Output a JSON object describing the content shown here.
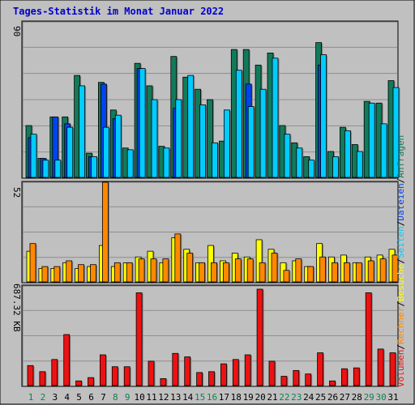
{
  "title": "Tages-Statistik im Monat Januar 2022",
  "chart_data": [
    {
      "type": "bar",
      "panel": "top",
      "ymax_label": "90",
      "ylim": [
        0,
        90
      ],
      "categories": [
        "1",
        "2",
        "3",
        "4",
        "5",
        "6",
        "7",
        "8",
        "9",
        "10",
        "11",
        "12",
        "13",
        "14",
        "15",
        "16",
        "17",
        "18",
        "19",
        "20",
        "21",
        "22",
        "23",
        "24",
        "25",
        "26",
        "27",
        "28",
        "29",
        "30",
        "31"
      ],
      "series": [
        {
          "name": "Anfragen",
          "color": "#127a5a",
          "values": [
            30,
            11,
            35,
            35,
            59,
            14,
            55,
            39,
            17,
            66,
            53,
            18,
            70,
            58,
            51,
            45,
            21,
            74,
            74,
            65,
            72,
            30,
            20,
            12,
            78,
            15,
            29,
            19,
            44,
            43,
            56
          ]
        },
        {
          "name": "Dateien",
          "color": "#0044ee",
          "values": [
            23,
            11,
            35,
            31,
            0,
            12,
            54,
            34,
            0,
            63,
            0,
            0,
            40,
            0,
            0,
            0,
            0,
            0,
            54,
            0,
            0,
            0,
            0,
            0,
            65,
            0,
            0,
            0,
            0,
            0,
            0
          ]
        },
        {
          "name": "Seiten",
          "color": "#00ccff",
          "values": [
            25,
            10,
            10,
            29,
            53,
            12,
            29,
            36,
            16,
            63,
            45,
            17,
            45,
            59,
            42,
            20,
            39,
            62,
            41,
            51,
            69,
            25,
            17,
            10,
            71,
            12,
            27,
            15,
            43,
            31,
            52
          ]
        }
      ]
    },
    {
      "type": "bar",
      "panel": "middle",
      "ymax_label": "52",
      "ylim": [
        0,
        52
      ],
      "categories": [
        "1",
        "2",
        "3",
        "4",
        "5",
        "6",
        "7",
        "8",
        "9",
        "10",
        "11",
        "12",
        "13",
        "14",
        "15",
        "16",
        "17",
        "18",
        "19",
        "20",
        "21",
        "22",
        "23",
        "24",
        "25",
        "26",
        "27",
        "28",
        "29",
        "30",
        "31"
      ],
      "series": [
        {
          "name": "Besuche",
          "color": "#ffff00",
          "values": [
            16,
            7,
            7,
            10,
            7,
            8,
            19,
            8,
            10,
            13,
            16,
            10,
            23,
            17,
            10,
            19,
            11,
            15,
            13,
            22,
            17,
            10,
            11,
            8,
            20,
            13,
            14,
            10,
            13,
            14,
            17
          ]
        },
        {
          "name": "Rechner",
          "color": "#ff8800",
          "values": [
            20,
            8,
            8,
            11,
            9,
            9,
            52,
            10,
            10,
            12,
            12,
            12,
            25,
            15,
            10,
            10,
            10,
            12,
            12,
            10,
            15,
            6,
            12,
            8,
            13,
            10,
            10,
            10,
            11,
            12,
            14
          ]
        }
      ]
    },
    {
      "type": "bar",
      "panel": "bottom",
      "ymax_label": "687.32 KB",
      "ylim": [
        0,
        687.32
      ],
      "categories": [
        "1",
        "2",
        "3",
        "4",
        "5",
        "6",
        "7",
        "8",
        "9",
        "10",
        "11",
        "12",
        "13",
        "14",
        "15",
        "16",
        "17",
        "18",
        "19",
        "20",
        "21",
        "22",
        "23",
        "24",
        "25",
        "26",
        "27",
        "28",
        "29",
        "30",
        "31"
      ],
      "series": [
        {
          "name": "Volumen",
          "color": "#ee1111",
          "values": [
            138,
            96,
            180,
            352,
            32,
            55,
            212,
            130,
            130,
            640,
            168,
            48,
            222,
            198,
            90,
            96,
            150,
            180,
            212,
            665,
            168,
            64,
            104,
            80,
            226,
            32,
            116,
            122,
            640,
            252,
            226
          ]
        }
      ]
    }
  ],
  "day_label_colors": {
    "weekday": "#000000",
    "weekend": "#108050"
  },
  "weekend_days": [
    1,
    2,
    8,
    9,
    15,
    16,
    22,
    23,
    29,
    30
  ],
  "legend_right": [
    {
      "text": "Anfragen",
      "color": "#127a5a"
    },
    {
      "text": "/",
      "color": "#000000"
    },
    {
      "text": "Dateien",
      "color": "#0044ee"
    },
    {
      "text": "/",
      "color": "#000000"
    },
    {
      "text": "Seiten",
      "color": "#00ccff"
    },
    {
      "text": "/",
      "color": "#000000"
    },
    {
      "text": "Besuche",
      "color": "#ffff00"
    },
    {
      "text": "/",
      "color": "#000000"
    },
    {
      "text": "Rechner",
      "color": "#ff8800"
    },
    {
      "text": "/",
      "color": "#000000"
    },
    {
      "text": "Volumen",
      "color": "#ee1111"
    }
  ]
}
